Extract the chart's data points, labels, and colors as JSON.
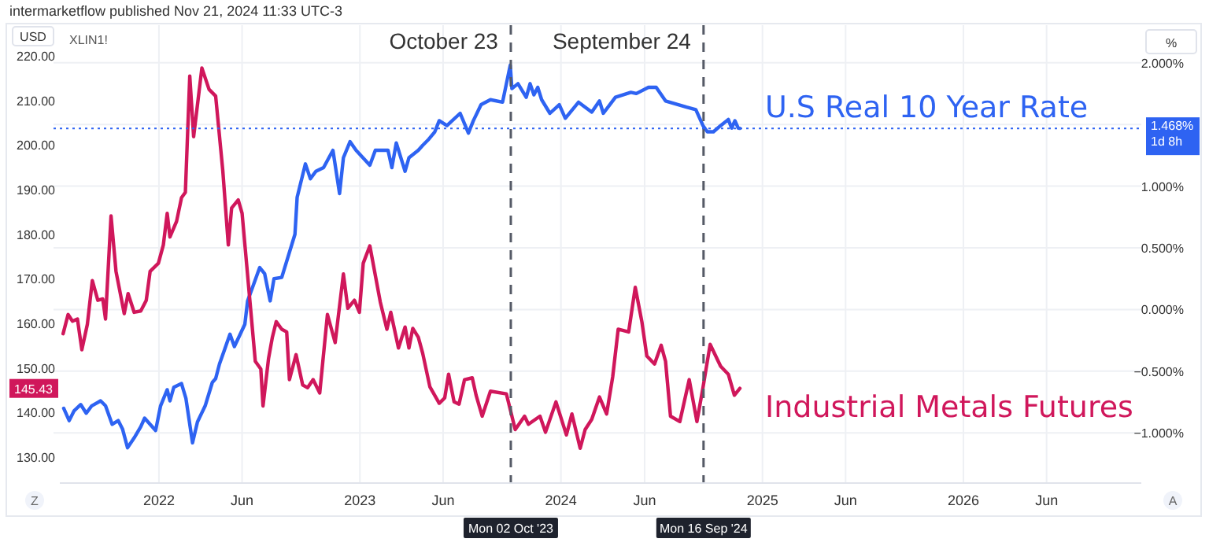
{
  "chart_data": {
    "type": "line",
    "title": "intermarketflow published Nov 21, 2024 11:33 UTC-3",
    "subtitle": "XLIN1!",
    "ylabel": "USD",
    "y2label": "%",
    "xlim": [
      "2021-07-05",
      "2026-11-20"
    ],
    "xticks": [
      {
        "value": "2022-01-01",
        "label": "2022"
      },
      {
        "value": "2022-06-01",
        "label": "Jun"
      },
      {
        "value": "2023-01-01",
        "label": "2023"
      },
      {
        "value": "2023-06-01",
        "label": "Jun"
      },
      {
        "value": "2024-01-01",
        "label": "2024"
      },
      {
        "value": "2024-06-01",
        "label": "Jun"
      },
      {
        "value": "2025-01-01",
        "label": "2025"
      },
      {
        "value": "2025-06-01",
        "label": "Jun"
      },
      {
        "value": "2026-01-01",
        "label": "2026"
      },
      {
        "value": "2026-06-01",
        "label": "Jun"
      }
    ],
    "ylim": [
      124.2,
      226.9
    ],
    "yticks": [
      {
        "value": 130,
        "label": "130.00"
      },
      {
        "value": 140,
        "label": "140.00"
      },
      {
        "value": 150,
        "label": "150.00"
      },
      {
        "value": 160,
        "label": "160.00"
      },
      {
        "value": 170,
        "label": "170.00"
      },
      {
        "value": 180,
        "label": "180.00"
      },
      {
        "value": 190,
        "label": "190.00"
      },
      {
        "value": 200,
        "label": "200.00"
      },
      {
        "value": 210,
        "label": "210.00"
      },
      {
        "value": 220,
        "label": "220.00"
      }
    ],
    "y2lim": [
      -1.406,
      2.304
    ],
    "y2ticks": [
      {
        "value": -1,
        "label": "−1.000%"
      },
      {
        "value": -0.5,
        "label": "−0.500%"
      },
      {
        "value": 0,
        "label": "0.000%"
      },
      {
        "value": 0.5,
        "label": "0.500%"
      },
      {
        "value": 1,
        "label": "1.000%"
      },
      {
        "value": 1.5,
        "label": null
      },
      {
        "value": 2,
        "label": "2.000%"
      }
    ],
    "grid": true,
    "series": [
      {
        "name": "U.S Real 10 Year Rate",
        "color": "#2e63f2",
        "axis": "y2",
        "x": [
          "2021-07-12",
          "2021-07-22",
          "2021-07-31",
          "2021-08-12",
          "2021-08-22",
          "2021-09-01",
          "2021-09-17",
          "2021-09-26",
          "2021-10-08",
          "2021-10-19",
          "2021-10-27",
          "2021-11-05",
          "2021-11-17",
          "2021-11-29",
          "2021-12-06",
          "2021-12-26",
          "2022-01-04",
          "2022-01-16",
          "2022-01-21",
          "2022-01-28",
          "2022-02-11",
          "2022-02-19",
          "2022-03-03",
          "2022-03-12",
          "2022-03-26",
          "2022-04-08",
          "2022-04-14",
          "2022-04-21",
          "2022-04-29",
          "2022-05-10",
          "2022-05-18",
          "2022-06-06",
          "2022-06-11",
          "2022-06-20",
          "2022-07-03",
          "2022-07-12",
          "2022-07-22",
          "2022-07-29",
          "2022-08-12",
          "2022-09-05",
          "2022-09-09",
          "2022-09-24",
          "2022-10-03",
          "2022-10-13",
          "2022-10-27",
          "2022-11-13",
          "2022-11-25",
          "2022-12-02",
          "2022-12-14",
          "2022-12-25",
          "2023-01-19",
          "2023-01-29",
          "2023-02-21",
          "2023-02-28",
          "2023-03-08",
          "2023-03-24",
          "2023-03-31",
          "2023-04-17",
          "2023-04-25",
          "2023-05-06",
          "2023-05-17",
          "2023-05-25",
          "2023-06-08",
          "2023-07-02",
          "2023-07-17",
          "2023-07-26",
          "2023-08-09",
          "2023-08-26",
          "2023-09-17",
          "2023-10-01",
          "2023-10-04",
          "2023-10-15",
          "2023-10-30",
          "2023-11-06",
          "2023-11-13",
          "2023-11-20",
          "2023-11-27",
          "2023-12-12",
          "2023-12-29",
          "2024-01-09",
          "2024-02-02",
          "2024-02-26",
          "2024-03-11",
          "2024-03-18",
          "2024-04-09",
          "2024-05-07",
          "2024-05-17",
          "2024-06-08",
          "2024-06-22",
          "2024-07-09",
          "2024-08-16",
          "2024-09-02",
          "2024-09-15",
          "2024-09-23",
          "2024-10-04",
          "2024-10-17",
          "2024-10-31",
          "2024-11-06",
          "2024-11-12",
          "2024-11-18",
          "2024-11-21"
        ],
        "values": [
          -0.8,
          -0.9,
          -0.82,
          -0.77,
          -0.84,
          -0.78,
          -0.74,
          -0.78,
          -0.93,
          -0.9,
          -0.97,
          -1.12,
          -1.04,
          -0.95,
          -0.88,
          -0.98,
          -0.78,
          -0.65,
          -0.74,
          -0.63,
          -0.6,
          -0.72,
          -1.08,
          -0.91,
          -0.78,
          -0.59,
          -0.56,
          -0.44,
          -0.34,
          -0.2,
          -0.3,
          -0.12,
          0.07,
          0.18,
          0.34,
          0.29,
          0.07,
          0.25,
          0.26,
          0.61,
          0.91,
          1.18,
          1.06,
          1.12,
          1.15,
          1.29,
          0.94,
          1.23,
          1.36,
          1.29,
          1.17,
          1.29,
          1.29,
          1.15,
          1.35,
          1.12,
          1.23,
          1.29,
          1.33,
          1.38,
          1.44,
          1.53,
          1.49,
          1.59,
          1.43,
          1.53,
          1.66,
          1.7,
          1.68,
          1.98,
          1.79,
          1.83,
          1.72,
          1.83,
          1.74,
          1.8,
          1.7,
          1.59,
          1.66,
          1.55,
          1.68,
          1.6,
          1.69,
          1.59,
          1.72,
          1.76,
          1.75,
          1.8,
          1.8,
          1.69,
          1.64,
          1.62,
          1.49,
          1.44,
          1.44,
          1.49,
          1.54,
          1.47,
          1.53,
          1.47,
          1.468
        ]
      },
      {
        "name": "Industrial Metals Futures",
        "color": "#d0175b",
        "x": [
          "2021-07-11",
          "2021-07-20",
          "2021-07-28",
          "2021-08-06",
          "2021-08-14",
          "2021-08-24",
          "2021-09-02",
          "2021-09-12",
          "2021-09-21",
          "2021-09-26",
          "2021-10-06",
          "2021-10-15",
          "2021-10-30",
          "2021-11-06",
          "2021-11-17",
          "2021-11-29",
          "2021-12-09",
          "2021-12-16",
          "2021-12-31",
          "2022-01-09",
          "2022-01-16",
          "2022-01-21",
          "2022-02-02",
          "2022-02-11",
          "2022-02-18",
          "2022-02-26",
          "2022-03-05",
          "2022-03-20",
          "2022-04-02",
          "2022-04-14",
          "2022-04-27",
          "2022-05-07",
          "2022-05-13",
          "2022-05-25",
          "2022-06-01",
          "2022-06-25",
          "2022-07-05",
          "2022-07-09",
          "2022-07-19",
          "2022-07-26",
          "2022-08-02",
          "2022-08-12",
          "2022-08-21",
          "2022-08-26",
          "2022-09-07",
          "2022-09-19",
          "2022-09-28",
          "2022-10-08",
          "2022-10-20",
          "2022-11-03",
          "2022-11-17",
          "2022-12-02",
          "2022-12-10",
          "2022-12-22",
          "2022-12-31",
          "2023-01-07",
          "2023-01-19",
          "2023-02-07",
          "2023-02-19",
          "2023-02-26",
          "2023-03-12",
          "2023-03-24",
          "2023-03-31",
          "2023-04-07",
          "2023-04-17",
          "2023-04-25",
          "2023-05-08",
          "2023-05-25",
          "2023-06-04",
          "2023-06-11",
          "2023-06-21",
          "2023-06-30",
          "2023-07-10",
          "2023-07-24",
          "2023-07-31",
          "2023-08-11",
          "2023-08-26",
          "2023-09-24",
          "2023-10-10",
          "2023-10-27",
          "2023-11-03",
          "2023-11-24",
          "2023-12-04",
          "2023-12-23",
          "2024-01-11",
          "2024-01-21",
          "2024-02-05",
          "2024-02-14",
          "2024-02-26",
          "2024-03-11",
          "2024-03-24",
          "2024-04-04",
          "2024-04-14",
          "2024-05-03",
          "2024-05-15",
          "2024-05-27",
          "2024-06-05",
          "2024-06-19",
          "2024-07-01",
          "2024-07-09",
          "2024-07-18",
          "2024-08-04",
          "2024-08-21",
          "2024-09-04",
          "2024-09-15",
          "2024-09-28",
          "2024-10-17",
          "2024-10-31",
          "2024-11-11",
          "2024-11-21"
        ],
        "values": [
          157.7,
          162,
          160.5,
          161,
          154.1,
          159.8,
          169.6,
          165.2,
          165.5,
          161,
          184.1,
          171.7,
          162.2,
          166.7,
          162.5,
          162.8,
          165.2,
          171.7,
          173.5,
          177.6,
          184.7,
          179.4,
          182.9,
          188.2,
          189.4,
          215.5,
          201.9,
          217.3,
          212.5,
          211,
          194.2,
          177.6,
          185.9,
          187.7,
          184.7,
          151.5,
          149.8,
          141.5,
          152.1,
          156.9,
          160.4,
          158.7,
          158.1,
          147.4,
          153,
          146.2,
          145.6,
          147.4,
          144.4,
          162,
          155.7,
          171.1,
          163.4,
          165.2,
          162.5,
          173.5,
          177.4,
          164.8,
          158.7,
          162.5,
          154.5,
          159.2,
          154.5,
          158.9,
          156.9,
          153.3,
          145.8,
          142.1,
          143.3,
          148.6,
          142.4,
          141.9,
          147.4,
          147.8,
          143.9,
          139.2,
          144.8,
          144.2,
          136.2,
          139.2,
          137.4,
          139.2,
          135.6,
          142.4,
          135,
          139.7,
          132,
          136.2,
          138.5,
          143.5,
          139.7,
          148,
          158.7,
          158.1,
          168.1,
          160.4,
          152.7,
          150.9,
          155.1,
          151.5,
          139.2,
          138,
          147.4,
          138,
          145.6,
          155.3,
          150.4,
          148.6,
          143.9,
          145.43
        ]
      }
    ],
    "ref_lines": [
      {
        "axis": "x",
        "value": "2023-10-02",
        "label": "October 23\nMon 02 Oct '23",
        "color": "#555a66",
        "line_style": "dashed"
      },
      {
        "axis": "x",
        "value": "2024-09-16",
        "label": "September 24\nMon 16 Sep '24",
        "color": "#555a66",
        "line_style": "dashed"
      },
      {
        "axis": "y2",
        "value": 1.468,
        "label": "1.468%\n1d 8h",
        "color": "#2e63f2",
        "line_style": "dotted"
      }
    ],
    "annotations": [
      {
        "text": "145.43",
        "y": 145.43
      },
      "Z",
      "A"
    ]
  }
}
